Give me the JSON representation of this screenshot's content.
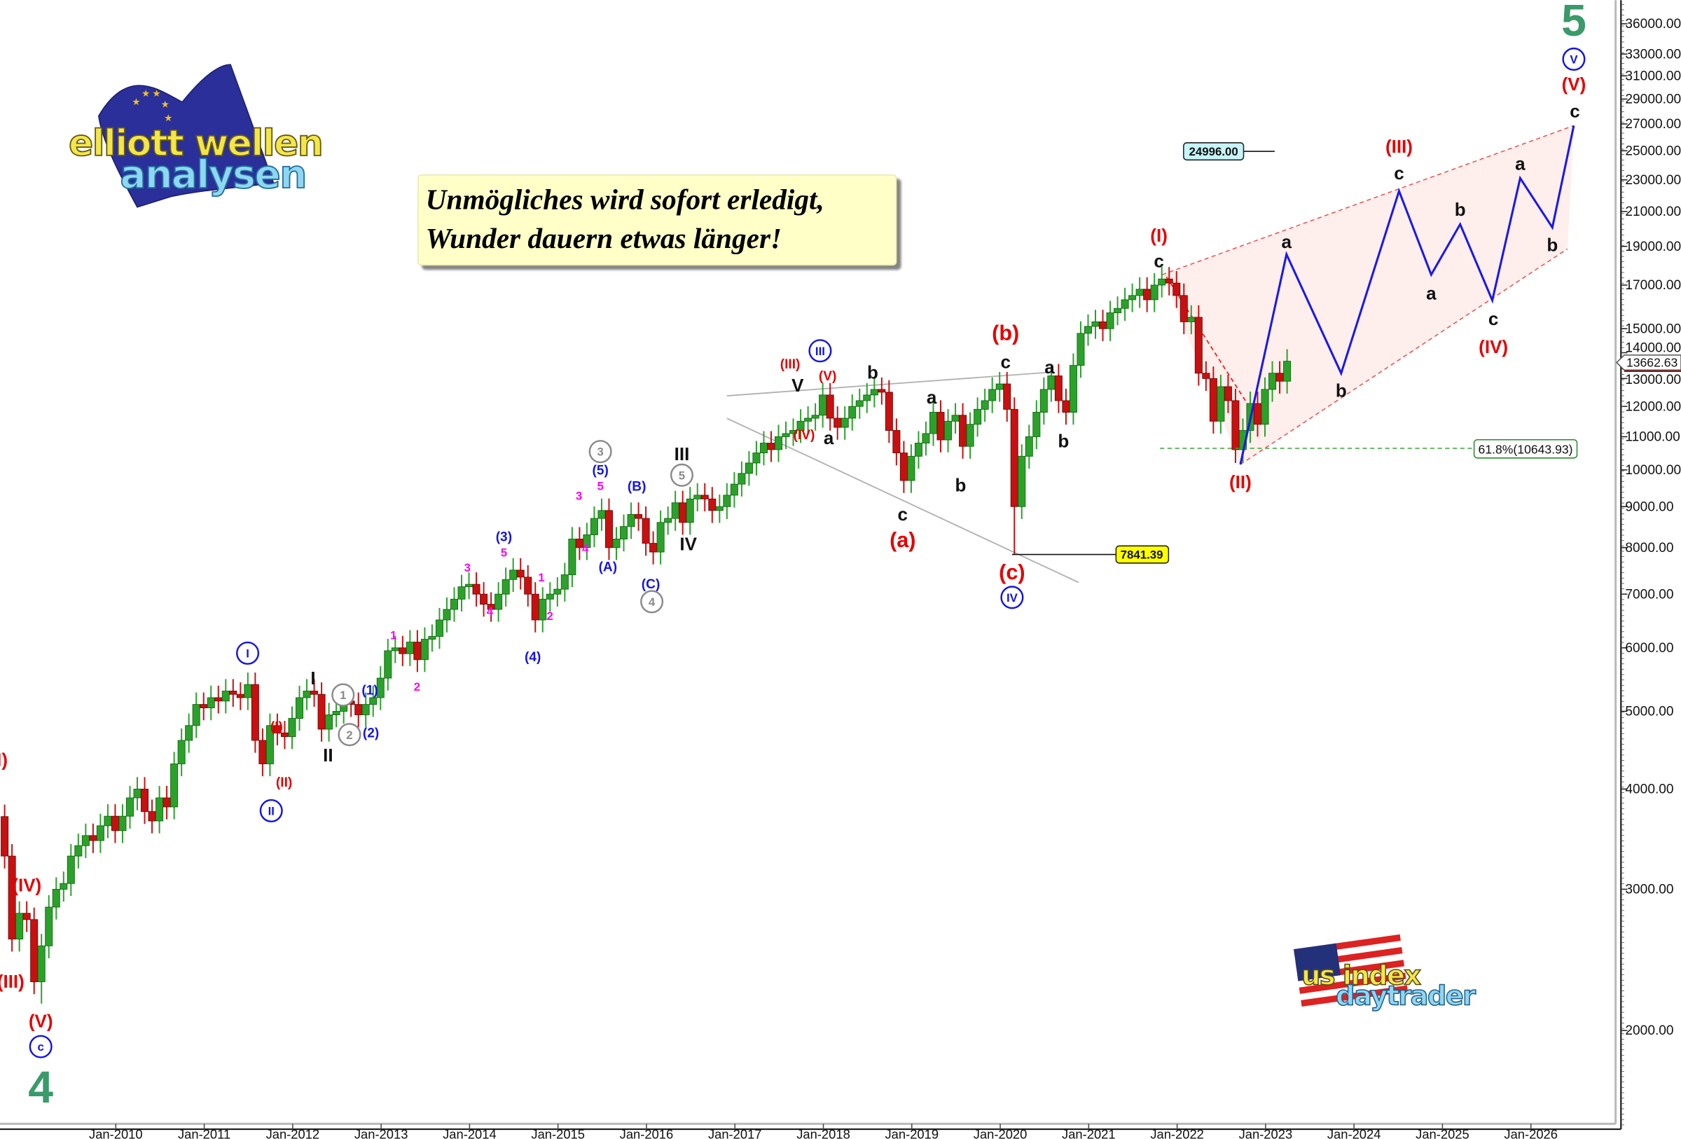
{
  "colors": {
    "up_candle": "#2aa22a",
    "down_candle": "#c81010",
    "red": "#e60000",
    "blue": "#1414e6",
    "black": "#111111",
    "magenta": "#ff00ff",
    "grey": "#8a8a8a",
    "green": "#3a9a6a",
    "projection": "#1a1ae6",
    "quote_bg": "#ffffc8"
  },
  "quote": {
    "line1": "Unmögliches wird sofort erledigt,",
    "line2": "Wunder dauern etwas länger!"
  },
  "logos": {
    "top_left": {
      "line1": "elliott wellen",
      "line2": "analysen"
    },
    "bottom_right": {
      "line1": "us index",
      "line2": "daytrader"
    }
  },
  "chart_data": {
    "type": "candlestick",
    "interval": "monthly",
    "start": "2008-10",
    "y_scale": "log",
    "ylim": [
      1650,
      39000
    ],
    "y_ticks": [
      36000,
      33000,
      31000,
      29000,
      27000,
      25000,
      23000,
      21000,
      19000,
      17000,
      15000,
      14000,
      13000,
      12000,
      11000,
      10000,
      9000,
      8000,
      7000,
      6000,
      5000,
      4000,
      3000,
      2000
    ],
    "y_tick_labels": [
      "36000.00",
      "33000.00",
      "31000.00",
      "29000.00",
      "27000.00",
      "25000.00",
      "23000.00",
      "21000.00",
      "19000.00",
      "17000.00",
      "15000.00",
      "14000.00",
      "13000.00",
      "12000.00",
      "11000.00",
      "10000.00",
      "9000.00",
      "8000.00",
      "7000.00",
      "6000.00",
      "5000.00",
      "4000.00",
      "3000.00",
      "2000.00"
    ],
    "x_tick_labels": [
      "Jan-2010",
      "Jan-2011",
      "Jan-2012",
      "Jan-2013",
      "Jan-2014",
      "Jan-2015",
      "Jan-2016",
      "Jan-2017",
      "Jan-2018",
      "Jan-2019",
      "Jan-2020",
      "Jan-2021",
      "Jan-2022",
      "Jan-2023",
      "Jan-2024",
      "Jan-2025",
      "Jan-2026"
    ],
    "closes": [
      3300,
      2600,
      2800,
      2750,
      2300,
      2550,
      2850,
      3000,
      3050,
      3300,
      3400,
      3500,
      3450,
      3600,
      3700,
      3550,
      3700,
      3900,
      4000,
      3750,
      3650,
      3900,
      3800,
      4300,
      4600,
      4800,
      5100,
      5050,
      5200,
      5150,
      5300,
      5250,
      5200,
      5400,
      4600,
      4300,
      4800,
      4700,
      4650,
      4900,
      5200,
      5300,
      5250,
      4750,
      4950,
      5000,
      5150,
      5100,
      4950,
      5100,
      5200,
      5500,
      5950,
      6000,
      5900,
      6100,
      5800,
      6150,
      6200,
      6500,
      6700,
      6900,
      7150,
      7200,
      7000,
      6800,
      6700,
      7000,
      7300,
      7500,
      7350,
      7000,
      6500,
      6900,
      7000,
      7100,
      7400,
      8200,
      8000,
      8300,
      8700,
      8900,
      8000,
      8200,
      8500,
      8800,
      8700,
      8100,
      7900,
      8600,
      8700,
      9100,
      8600,
      9200,
      9300,
      9200,
      8900,
      9000,
      9300,
      9600,
      9900,
      10200,
      10500,
      10800,
      10600,
      11000,
      11100,
      11200,
      11500,
      11600,
      11700,
      12400,
      11600,
      11300,
      11600,
      12000,
      12200,
      12400,
      12600,
      12500,
      11200,
      10500,
      9700,
      10400,
      10800,
      11100,
      11800,
      10900,
      11500,
      11700,
      10700,
      11400,
      11900,
      12200,
      12600,
      12800,
      11900,
      9000,
      10400,
      11000,
      11800,
      12600,
      13100,
      12200,
      11800,
      13500,
      14800,
      15100,
      15300,
      15000,
      15700,
      15900,
      16300,
      16500,
      16800,
      16300,
      17000,
      17300,
      17100,
      16500,
      15300,
      15500,
      13200,
      13000,
      11500,
      12700,
      12200,
      10600,
      11200,
      12100,
      11400,
      12600,
      13200,
      12900,
      13662.63
    ],
    "low_overrides": {
      "2009-03": 2160,
      "2020-03": 7841.39,
      "2022-09": 10200
    },
    "last_price": "13662.63",
    "price_labels": {
      "low_2020": "7841.39",
      "target": "24996.00",
      "fib": "61.8%(10643.93)"
    },
    "annotations": [
      {
        "text": "I)",
        "color": "red",
        "kind": "normal"
      },
      {
        "text": "(IV)",
        "color": "red",
        "kind": "normal"
      },
      {
        "text": "(III)",
        "color": "red",
        "kind": "normal"
      },
      {
        "text": "(V)",
        "color": "red",
        "kind": "normal"
      },
      {
        "text": "c",
        "color": "blue",
        "kind": "circled"
      },
      {
        "text": "4",
        "color": "green",
        "kind": "huge"
      },
      {
        "text": "I",
        "color": "blue",
        "kind": "circled"
      },
      {
        "text": "II",
        "color": "blue",
        "kind": "circled"
      },
      {
        "text": "(I)",
        "color": "red",
        "kind": "small"
      },
      {
        "text": "(II)",
        "color": "red",
        "kind": "small"
      },
      {
        "text": "I",
        "color": "black",
        "kind": "normal"
      },
      {
        "text": "II",
        "color": "black",
        "kind": "normal"
      },
      {
        "text": "1",
        "color": "grey",
        "kind": "circled"
      },
      {
        "text": "2",
        "color": "grey",
        "kind": "circled"
      },
      {
        "text": "(1)",
        "color": "blue",
        "kind": "small"
      },
      {
        "text": "(2)",
        "color": "blue",
        "kind": "small"
      },
      {
        "text": "1",
        "color": "magenta",
        "kind": "tiny"
      },
      {
        "text": "2",
        "color": "magenta",
        "kind": "tiny"
      },
      {
        "text": "3",
        "color": "magenta",
        "kind": "tiny"
      },
      {
        "text": "4",
        "color": "magenta",
        "kind": "tiny"
      },
      {
        "text": "(3)",
        "color": "blue",
        "kind": "small"
      },
      {
        "text": "5",
        "color": "magenta",
        "kind": "tiny"
      },
      {
        "text": "(4)",
        "color": "blue",
        "kind": "small"
      },
      {
        "text": "1",
        "color": "magenta",
        "kind": "tiny"
      },
      {
        "text": "2",
        "color": "magenta",
        "kind": "tiny"
      },
      {
        "text": "3",
        "color": "magenta",
        "kind": "tiny"
      },
      {
        "text": "4",
        "color": "magenta",
        "kind": "tiny"
      },
      {
        "text": "5",
        "color": "magenta",
        "kind": "tiny"
      },
      {
        "text": "(5)",
        "color": "blue",
        "kind": "small"
      },
      {
        "text": "3",
        "color": "grey",
        "kind": "circled"
      },
      {
        "text": "(A)",
        "color": "blue",
        "kind": "small"
      },
      {
        "text": "(B)",
        "color": "blue",
        "kind": "small"
      },
      {
        "text": "(C)",
        "color": "blue",
        "kind": "small"
      },
      {
        "text": "4",
        "color": "grey",
        "kind": "circled"
      },
      {
        "text": "5",
        "color": "grey",
        "kind": "circled"
      },
      {
        "text": "III",
        "color": "black",
        "kind": "normal"
      },
      {
        "text": "IV",
        "color": "black",
        "kind": "normal"
      },
      {
        "text": "(III)",
        "color": "red",
        "kind": "small"
      },
      {
        "text": "(V)",
        "color": "red",
        "kind": "small"
      },
      {
        "text": "V",
        "color": "black",
        "kind": "normal"
      },
      {
        "text": "III",
        "color": "blue",
        "kind": "circled"
      },
      {
        "text": "(IV)",
        "color": "red",
        "kind": "small"
      },
      {
        "text": "a",
        "color": "black",
        "kind": "normal"
      },
      {
        "text": "b",
        "color": "black",
        "kind": "normal"
      },
      {
        "text": "c",
        "color": "black",
        "kind": "normal"
      },
      {
        "text": "(a)",
        "color": "red",
        "kind": "big"
      },
      {
        "text": "a",
        "color": "black",
        "kind": "normal"
      },
      {
        "text": "b",
        "color": "black",
        "kind": "normal"
      },
      {
        "text": "(b)",
        "color": "red",
        "kind": "big"
      },
      {
        "text": "c",
        "color": "black",
        "kind": "normal"
      },
      {
        "text": "(c)",
        "color": "red",
        "kind": "big"
      },
      {
        "text": "IV",
        "color": "blue",
        "kind": "circled"
      },
      {
        "text": "a",
        "color": "black",
        "kind": "normal"
      },
      {
        "text": "b",
        "color": "black",
        "kind": "normal"
      },
      {
        "text": "(I)",
        "color": "red",
        "kind": "normal"
      },
      {
        "text": "c",
        "color": "black",
        "kind": "normal"
      },
      {
        "text": "(II)",
        "color": "red",
        "kind": "normal"
      },
      {
        "text": "a",
        "color": "black",
        "kind": "normal"
      },
      {
        "text": "b",
        "color": "black",
        "kind": "normal"
      },
      {
        "text": "(III)",
        "color": "red",
        "kind": "normal"
      },
      {
        "text": "c",
        "color": "black",
        "kind": "normal"
      },
      {
        "text": "a",
        "color": "black",
        "kind": "normal"
      },
      {
        "text": "b",
        "color": "black",
        "kind": "normal"
      },
      {
        "text": "c",
        "color": "black",
        "kind": "normal"
      },
      {
        "text": "(IV)",
        "color": "red",
        "kind": "normal"
      },
      {
        "text": "a",
        "color": "black",
        "kind": "normal"
      },
      {
        "text": "b",
        "color": "black",
        "kind": "normal"
      },
      {
        "text": "c",
        "color": "black",
        "kind": "normal"
      },
      {
        "text": "(V)",
        "color": "red",
        "kind": "normal"
      },
      {
        "text": "V",
        "color": "blue",
        "kind": "circled"
      },
      {
        "text": "5",
        "color": "green",
        "kind": "huge"
      }
    ]
  }
}
